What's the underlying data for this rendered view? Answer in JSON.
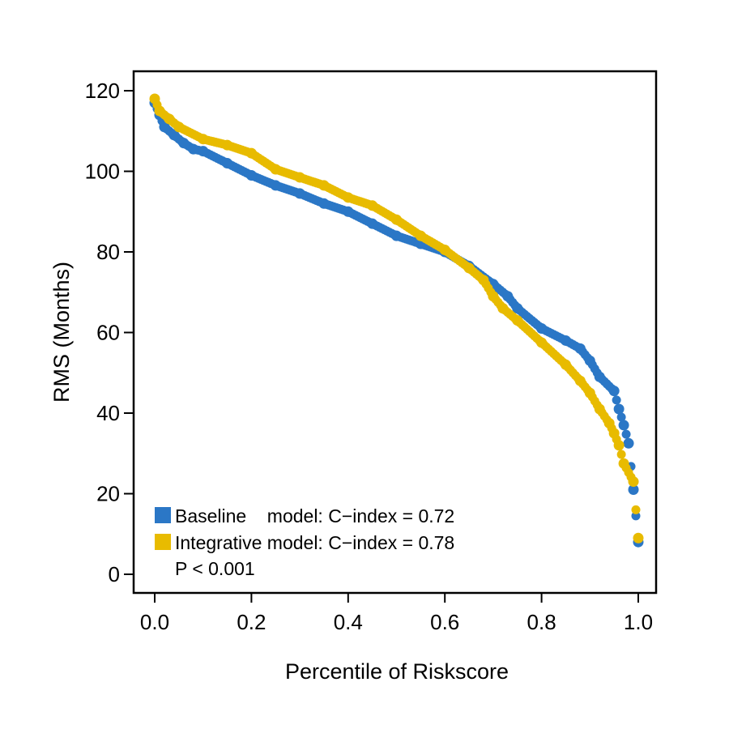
{
  "chart_data": {
    "type": "scatter",
    "title": "",
    "xlabel": "Percentile of Riskscore",
    "ylabel": "RMS (Months)",
    "xlim": [
      0,
      1
    ],
    "ylim": [
      0,
      120
    ],
    "x_ticks": [
      0.0,
      0.2,
      0.4,
      0.6,
      0.8,
      1.0
    ],
    "x_tick_labels": [
      "0.0",
      "0.2",
      "0.4",
      "0.6",
      "0.8",
      "1.0"
    ],
    "y_ticks": [
      0,
      20,
      40,
      60,
      80,
      100,
      120
    ],
    "y_tick_labels": [
      "0",
      "20",
      "40",
      "60",
      "80",
      "100",
      "120"
    ],
    "grid": false,
    "legend_position": "bottom-left",
    "legend_entries": [
      "Baseline    model: C−index = 0.72",
      "Integrative model: C−index = 0.78"
    ],
    "annotation": "P < 0.001",
    "series": [
      {
        "color": "#2b77c6",
        "points": [
          [
            0.0,
            117
          ],
          [
            0.01,
            114
          ],
          [
            0.02,
            111
          ],
          [
            0.04,
            109
          ],
          [
            0.06,
            107
          ],
          [
            0.08,
            105.5
          ],
          [
            0.1,
            105
          ],
          [
            0.15,
            102
          ],
          [
            0.2,
            99
          ],
          [
            0.25,
            96.5
          ],
          [
            0.3,
            94.5
          ],
          [
            0.35,
            92
          ],
          [
            0.4,
            90
          ],
          [
            0.45,
            87
          ],
          [
            0.5,
            84
          ],
          [
            0.55,
            82
          ],
          [
            0.6,
            80
          ],
          [
            0.65,
            76.5
          ],
          [
            0.7,
            72
          ],
          [
            0.73,
            69
          ],
          [
            0.75,
            66
          ],
          [
            0.8,
            61
          ],
          [
            0.85,
            58
          ],
          [
            0.88,
            56
          ],
          [
            0.9,
            53
          ],
          [
            0.92,
            49
          ],
          [
            0.95,
            45.5
          ],
          [
            0.96,
            41
          ],
          [
            0.97,
            37
          ],
          [
            0.98,
            32.5
          ],
          [
            0.99,
            21
          ],
          [
            1.0,
            8
          ]
        ]
      },
      {
        "color": "#e8bb00",
        "points": [
          [
            0.0,
            118
          ],
          [
            0.01,
            115
          ],
          [
            0.03,
            113
          ],
          [
            0.05,
            111
          ],
          [
            0.1,
            108
          ],
          [
            0.15,
            106.5
          ],
          [
            0.2,
            104.5
          ],
          [
            0.25,
            100.5
          ],
          [
            0.3,
            98.5
          ],
          [
            0.35,
            96.5
          ],
          [
            0.4,
            93.5
          ],
          [
            0.45,
            91.5
          ],
          [
            0.5,
            88
          ],
          [
            0.55,
            84
          ],
          [
            0.6,
            80.5
          ],
          [
            0.65,
            76
          ],
          [
            0.68,
            73
          ],
          [
            0.7,
            69
          ],
          [
            0.72,
            66
          ],
          [
            0.75,
            63
          ],
          [
            0.8,
            57.5
          ],
          [
            0.85,
            52
          ],
          [
            0.88,
            48
          ],
          [
            0.9,
            45
          ],
          [
            0.92,
            41
          ],
          [
            0.94,
            37.5
          ],
          [
            0.95,
            35
          ],
          [
            0.96,
            32
          ],
          [
            0.97,
            27.5
          ],
          [
            0.99,
            23
          ],
          [
            1.0,
            9
          ]
        ]
      }
    ]
  }
}
